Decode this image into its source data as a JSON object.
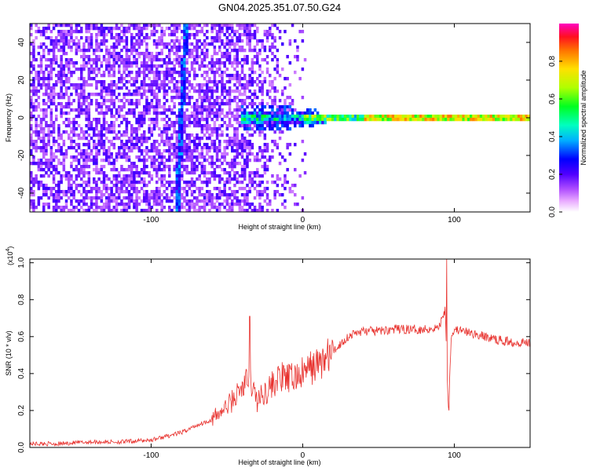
{
  "title": "GN04.2025.351.07.50.G24",
  "chart_data": [
    {
      "type": "heatmap",
      "title": "GN04.2025.351.07.50.G24",
      "xlabel": "Height of straight line (km)",
      "ylabel": "Frequency (Hz)",
      "xlim": [
        -180,
        150
      ],
      "ylim": [
        -50,
        50
      ],
      "x_ticks": [
        "-100",
        "0",
        "100"
      ],
      "y_ticks": [
        "-40",
        "-20",
        "0",
        "20",
        "40"
      ],
      "colorbar": {
        "label": "Normalized spectral amplitude",
        "range": [
          0.0,
          1.0
        ],
        "ticks": [
          "0.0",
          "0.2",
          "0.4",
          "0.6",
          "0.8"
        ]
      },
      "features": [
        {
          "name": "tilted_streak",
          "x_at_top": -77,
          "x_at_bottom": -83,
          "amplitude": 0.3
        },
        {
          "name": "signal_band",
          "frequency_hz": 0,
          "x_start": -40,
          "x_end": 150,
          "amplitude_peak": 1.0
        }
      ]
    },
    {
      "type": "line",
      "xlabel": "Height of straight line (km)",
      "ylabel": "SNR (10 * v/v)",
      "multiplier_label": "(x10",
      "multiplier_exp": "4",
      "xlim": [
        -180,
        150
      ],
      "ylim": [
        0,
        1.02
      ],
      "x_ticks": [
        "-100",
        "0",
        "100"
      ],
      "y_ticks": [
        "0.0",
        "0.2",
        "0.4",
        "0.6",
        "0.8",
        "1.0"
      ],
      "series": [
        {
          "name": "SNR",
          "color": "#e8322e",
          "x": [
            -180,
            -160,
            -140,
            -120,
            -100,
            -90,
            -80,
            -70,
            -60,
            -50,
            -45,
            -40,
            -35,
            -30,
            -25,
            -20,
            -15,
            -10,
            -5,
            0,
            5,
            10,
            15,
            20,
            25,
            30,
            35,
            40,
            50,
            60,
            70,
            80,
            90,
            94,
            96,
            98,
            100,
            110,
            120,
            130,
            140,
            150
          ],
          "values": [
            0.02,
            0.02,
            0.03,
            0.03,
            0.04,
            0.06,
            0.08,
            0.12,
            0.15,
            0.22,
            0.27,
            0.32,
            0.38,
            0.25,
            0.3,
            0.34,
            0.38,
            0.37,
            0.38,
            0.4,
            0.43,
            0.45,
            0.48,
            0.52,
            0.56,
            0.6,
            0.62,
            0.63,
            0.63,
            0.64,
            0.64,
            0.64,
            0.65,
            0.75,
            0.22,
            0.6,
            0.64,
            0.62,
            0.6,
            0.58,
            0.57,
            0.57
          ]
        }
      ],
      "spikes": [
        {
          "x": -35,
          "value": 0.71
        },
        {
          "x": 95,
          "value": 1.02
        },
        {
          "x": 96.5,
          "value": 0.2
        }
      ]
    }
  ]
}
